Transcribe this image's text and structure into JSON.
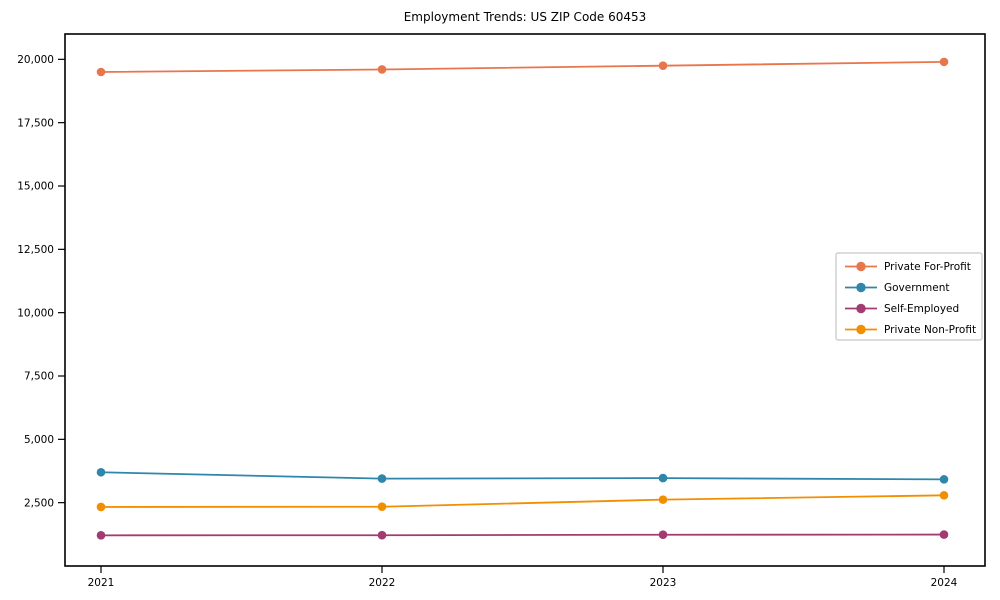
{
  "title": "Employment Trends: US ZIP Code 60453",
  "chart_data": {
    "type": "line",
    "title": "Employment Trends: US ZIP Code 60453",
    "xlabel": "",
    "ylabel": "",
    "x": [
      2021,
      2022,
      2023,
      2024
    ],
    "x_tick_labels": [
      "2021",
      "2022",
      "2023",
      "2024"
    ],
    "y_tick_values": [
      2500,
      5000,
      7500,
      10000,
      12500,
      15000,
      17500,
      20000
    ],
    "y_tick_labels": [
      "2,500",
      "5,000",
      "7,500",
      "10,000",
      "12,500",
      "15,000",
      "17,500",
      "20,000"
    ],
    "ylim": [
      0,
      21000
    ],
    "grid": false,
    "legend_position": "center-right",
    "frame_color": "#000000",
    "background_color": "#ffffff",
    "series": [
      {
        "name": "Private For-Profit",
        "color": "#e8764d",
        "values": [
          19500,
          19600,
          19750,
          19900
        ]
      },
      {
        "name": "Government",
        "color": "#2e86ab",
        "values": [
          3700,
          3450,
          3470,
          3420
        ]
      },
      {
        "name": "Self-Employed",
        "color": "#a23b72",
        "values": [
          1210,
          1215,
          1235,
          1240
        ]
      },
      {
        "name": "Private Non-Profit",
        "color": "#f18f01",
        "values": [
          2330,
          2340,
          2620,
          2790
        ]
      }
    ]
  }
}
